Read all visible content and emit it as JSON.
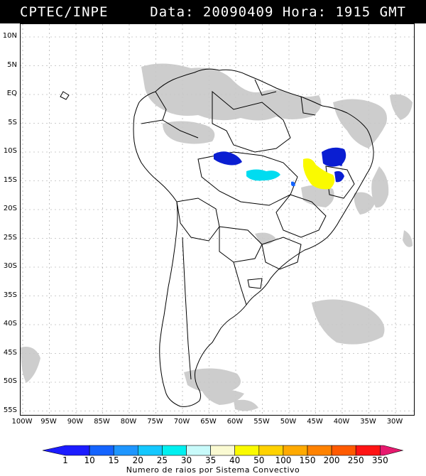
{
  "header": {
    "source": "CPTEC/INPE",
    "datetime": "Data: 20090409 Hora: 1915 GMT"
  },
  "map": {
    "lat_labels": [
      "10N",
      "5N",
      "EQ",
      "5S",
      "10S",
      "15S",
      "20S",
      "25S",
      "30S",
      "35S",
      "40S",
      "45S",
      "50S",
      "55S"
    ],
    "lon_labels": [
      "100W",
      "95W",
      "90W",
      "85W",
      "80W",
      "75W",
      "70W",
      "65W",
      "60W",
      "55W",
      "50W",
      "45W",
      "40W",
      "35W",
      "30W"
    ],
    "colors": {
      "land_outline": "#000000",
      "cloud": "#c8c8c8",
      "grid": "#9a9a9a"
    }
  },
  "legend": {
    "values": [
      "1",
      "10",
      "15",
      "20",
      "25",
      "30",
      "35",
      "40",
      "50",
      "100",
      "150",
      "200",
      "250",
      "350"
    ],
    "colors": [
      "#1c1cff",
      "#1464ff",
      "#1e96ff",
      "#14c8ff",
      "#00f0f0",
      "#c8fafa",
      "#fafad2",
      "#fafa00",
      "#ffd200",
      "#ffaa00",
      "#ff8200",
      "#ff5a00",
      "#ff1414",
      "#e6196e"
    ],
    "caption": "Numero de raios por Sistema Convectivo"
  },
  "lightning_systems": [
    {
      "id": "amazonia",
      "class": "1-10",
      "color": "#0a1ed2"
    },
    {
      "id": "mato-grosso",
      "class": "25-30",
      "color": "#00dcf0"
    },
    {
      "id": "bahia-north",
      "class": "1-10",
      "color": "#0a1ed2"
    },
    {
      "id": "bahia-center",
      "class": "35-40",
      "color": "#fafa00"
    },
    {
      "id": "bahia-east",
      "class": "1-10",
      "color": "#0a1ed2"
    },
    {
      "id": "goias-small",
      "class": "1-10",
      "color": "#1464ff"
    }
  ]
}
